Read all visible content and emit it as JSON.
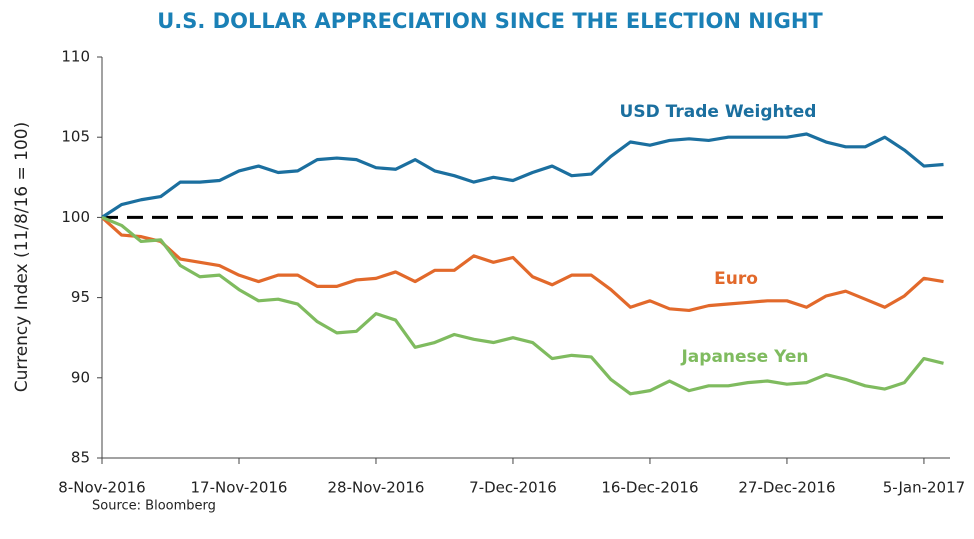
{
  "chart_data": {
    "type": "line",
    "title": "U.S. DOLLAR APPRECIATION SINCE THE ELECTION NIGHT",
    "y_label": "Currency Index (11/8/16 = 100)",
    "source": "Source: Bloomberg",
    "categories": [
      "8-Nov-2016",
      null,
      null,
      null,
      null,
      null,
      null,
      "17-Nov-2016",
      null,
      null,
      null,
      null,
      null,
      null,
      "28-Nov-2016",
      null,
      null,
      null,
      null,
      null,
      null,
      "7-Dec-2016",
      null,
      null,
      null,
      null,
      null,
      null,
      "16-Dec-2016",
      null,
      null,
      null,
      null,
      null,
      null,
      "27-Dec-2016",
      null,
      null,
      null,
      null,
      null,
      null,
      "5-Jan-2017",
      null
    ],
    "ylim": [
      85,
      110
    ],
    "yticks": [
      85,
      90,
      95,
      100,
      105,
      110
    ],
    "reference_line": 100,
    "series": [
      {
        "name": "USD Trade Weighted",
        "color": "#1b6f9f",
        "values": [
          100,
          100.8,
          101.1,
          101.3,
          102.2,
          102.2,
          102.3,
          102.9,
          103.2,
          102.8,
          102.9,
          103.6,
          103.7,
          103.6,
          103.1,
          103.0,
          103.6,
          102.9,
          102.6,
          102.2,
          102.5,
          102.3,
          102.8,
          103.2,
          102.6,
          102.7,
          103.8,
          104.7,
          104.5,
          104.8,
          104.9,
          104.8,
          105.0,
          105.0,
          105.0,
          105.0,
          105.2,
          104.7,
          104.4,
          104.4,
          105.0,
          104.2,
          103.2,
          103.3
        ]
      },
      {
        "name": "Euro",
        "color": "#e2692b",
        "values": [
          100,
          98.9,
          98.8,
          98.5,
          97.4,
          97.2,
          97.0,
          96.4,
          96.0,
          96.4,
          96.4,
          95.7,
          95.7,
          96.1,
          96.2,
          96.6,
          96.0,
          96.7,
          96.7,
          97.6,
          97.2,
          97.5,
          96.3,
          95.8,
          96.4,
          96.4,
          95.5,
          94.4,
          94.8,
          94.3,
          94.2,
          94.5,
          94.6,
          94.7,
          94.8,
          94.8,
          94.4,
          95.1,
          95.4,
          94.9,
          94.4,
          95.1,
          96.2,
          96.0
        ]
      },
      {
        "name": "Japanese Yen",
        "color": "#7fbb5f",
        "values": [
          100,
          99.5,
          98.5,
          98.6,
          97.0,
          96.3,
          96.4,
          95.5,
          94.8,
          94.9,
          94.6,
          93.5,
          92.8,
          92.9,
          94.0,
          93.6,
          91.9,
          92.2,
          92.7,
          92.4,
          92.2,
          92.5,
          92.2,
          91.2,
          91.4,
          91.3,
          89.9,
          89.0,
          89.2,
          89.8,
          89.2,
          89.5,
          89.5,
          89.7,
          89.8,
          89.6,
          89.7,
          90.2,
          89.9,
          89.5,
          89.3,
          89.7,
          91.2,
          90.9
        ]
      }
    ]
  }
}
